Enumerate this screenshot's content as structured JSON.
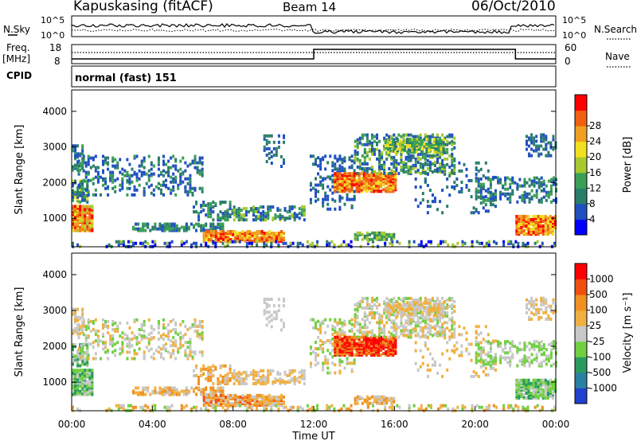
{
  "header": {
    "station": "Kapuskasing (fitACF)",
    "beam": "Beam 14",
    "date": "06/Oct/2010"
  },
  "noise_panel": {
    "left_label": "N.Sky",
    "right_label": "N.Search",
    "ticks_left": [
      "10^5",
      "10^0"
    ],
    "ticks_right": [
      "10^5",
      "10^0"
    ]
  },
  "freq_panel": {
    "label_line1": "Freq.",
    "label_line2": "[MHz]",
    "ticks_left": [
      "18",
      "8"
    ],
    "ticks_right": [
      "60",
      "0"
    ],
    "right_label": "Nave"
  },
  "cpid_panel": {
    "label": "CPID",
    "mode_text": "normal (fast) 151"
  },
  "chart_data": [
    {
      "type": "heatmap",
      "name": "power",
      "ylabel": "Slant Range [km]",
      "xlabel": "",
      "y_ticks": [
        "1000",
        "2000",
        "3000",
        "4000"
      ],
      "ylim": [
        200,
        4600
      ],
      "xlim": [
        0,
        24
      ],
      "colorbar": {
        "label": "Power [dB]",
        "ticks": [
          "4",
          "8",
          "12",
          "16",
          "20",
          "24",
          "28"
        ],
        "colors": [
          "#0000ff",
          "#2050c0",
          "#2a7d6a",
          "#3aa055",
          "#a8c830",
          "#f0e020",
          "#f0a020",
          "#f06010",
          "#ff0000"
        ]
      }
    },
    {
      "type": "heatmap",
      "name": "velocity",
      "ylabel": "Slant Range [km]",
      "xlabel": "Time UT",
      "x_ticks": [
        "00:00",
        "04:00",
        "08:00",
        "12:00",
        "16:00",
        "20:00",
        "00:00"
      ],
      "y_ticks": [
        "1000",
        "2000",
        "3000",
        "4000"
      ],
      "ylim": [
        200,
        4600
      ],
      "xlim": [
        0,
        24
      ],
      "colorbar": {
        "label": "Velocity [m s⁻¹]",
        "ticks": [
          "1000",
          "500",
          "100",
          "25",
          "-25",
          "-100",
          "-500",
          "-1000"
        ],
        "colors": [
          "#2040d0",
          "#2a80a0",
          "#2a9a60",
          "#70d040",
          "#c8c8c8",
          "#f0b040",
          "#f09020",
          "#f05010",
          "#ff0000"
        ]
      }
    }
  ]
}
